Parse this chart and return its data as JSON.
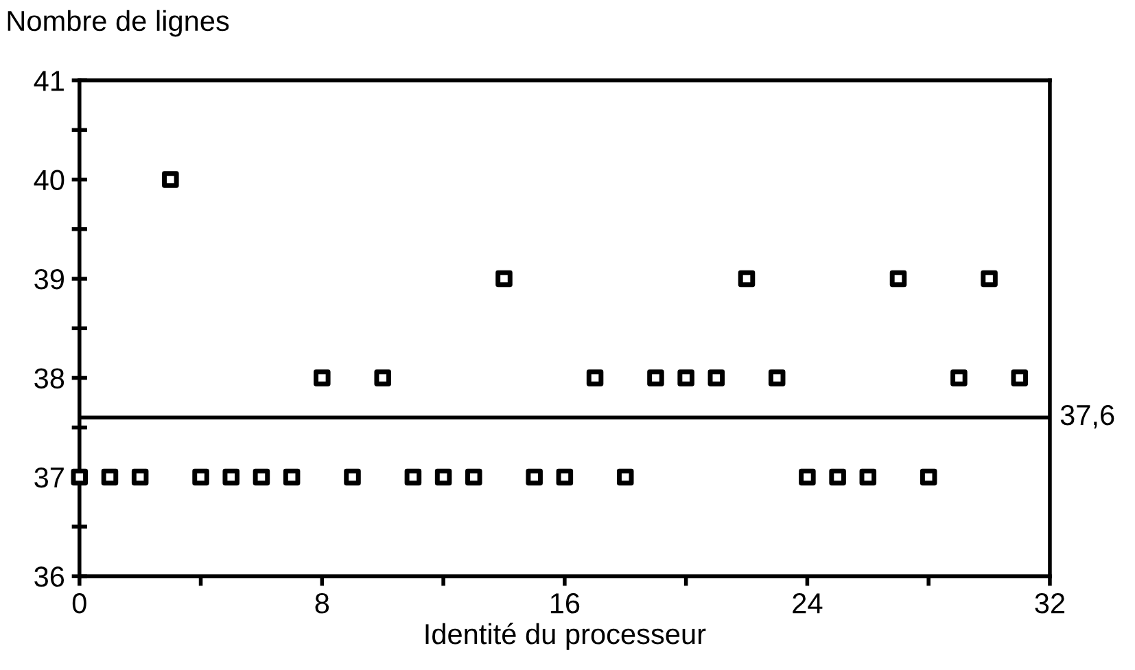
{
  "chart_data": {
    "type": "scatter",
    "ylabel": "Nombre de lignes",
    "xlabel": "Identité du processeur",
    "x": [
      0,
      1,
      2,
      3,
      4,
      5,
      6,
      7,
      8,
      9,
      10,
      11,
      12,
      13,
      14,
      15,
      16,
      17,
      18,
      19,
      20,
      21,
      22,
      23,
      24,
      25,
      26,
      27,
      28,
      29,
      30,
      31
    ],
    "values": [
      37,
      37,
      37,
      40,
      37,
      37,
      37,
      37,
      38,
      37,
      38,
      37,
      37,
      37,
      39,
      37,
      37,
      38,
      37,
      38,
      38,
      38,
      39,
      38,
      37,
      37,
      37,
      39,
      37,
      38,
      39,
      38
    ],
    "color": "#000000",
    "marker": "square",
    "xlim": [
      0,
      32
    ],
    "xticks": [
      0,
      {
        "value": 4,
        "label": null
      },
      8,
      {
        "value": 12,
        "label": null
      },
      16,
      {
        "value": 20,
        "label": null
      },
      24,
      {
        "value": 28,
        "label": null
      },
      32
    ],
    "ylim": [
      36,
      41
    ],
    "yticks": [
      36,
      {
        "value": 36.5,
        "label": null
      },
      37,
      {
        "value": 37.5,
        "label": null
      },
      38,
      {
        "value": 38.5,
        "label": null
      },
      39,
      {
        "value": 39.5,
        "label": null
      },
      40,
      {
        "value": 40.5,
        "label": null
      },
      41
    ],
    "ref_lines": [
      {
        "axis": "y",
        "value": 37.6,
        "label": "37,6",
        "color": "#000000",
        "line_style": "solid"
      }
    ],
    "grid": false,
    "legend": false
  }
}
